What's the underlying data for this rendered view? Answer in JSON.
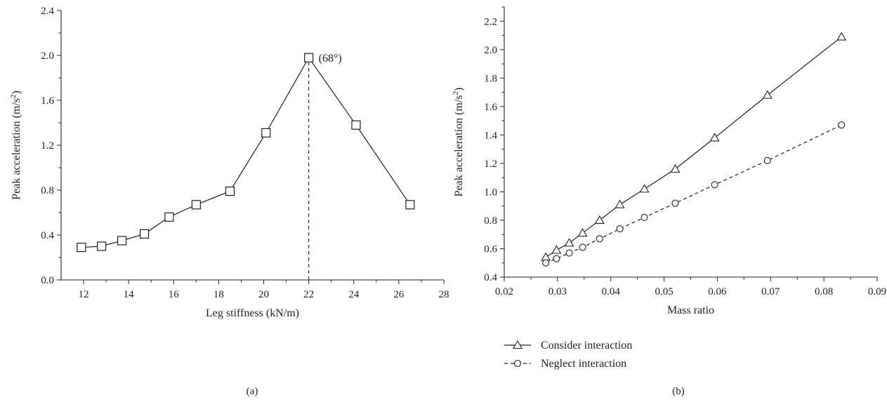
{
  "chart_data": [
    {
      "type": "line",
      "panel_label": "(a)",
      "xlabel": "Leg stiffness (kN/m)",
      "ylabel": "Peak acceleration (m/s",
      "ylabel_sup": "2",
      "ylabel_close": ")",
      "xlim": [
        11,
        28
      ],
      "ylim": [
        0,
        2.4
      ],
      "xticks": [
        "12",
        "14",
        "16",
        "18",
        "20",
        "22",
        "24",
        "26",
        "28"
      ],
      "yticks": [
        "0.0",
        "0.4",
        "0.8",
        "1.2",
        "1.6",
        "2.0",
        "2.4"
      ],
      "grid": false,
      "series": [
        {
          "marker": "square",
          "line": "solid",
          "x": [
            11.9,
            12.8,
            13.7,
            14.7,
            15.8,
            17.0,
            18.5,
            20.1,
            22.0,
            24.1,
            26.5
          ],
          "y": [
            0.29,
            0.3,
            0.35,
            0.41,
            0.56,
            0.67,
            0.79,
            1.31,
            1.98,
            1.38,
            0.67
          ]
        }
      ],
      "annotations": [
        {
          "text": "(68°)",
          "x": 22.0,
          "y": 1.98
        }
      ],
      "reference_lines": [
        {
          "orientation": "vertical",
          "x": 22.0,
          "y_from": 0,
          "y_to": 1.98,
          "style": "dashed"
        }
      ]
    },
    {
      "type": "line",
      "panel_label": "(b)",
      "xlabel": "Mass ratio",
      "ylabel": "Peak acceleration (m/s",
      "ylabel_sup": "2",
      "ylabel_close": ")",
      "xlim": [
        0.02,
        0.09
      ],
      "ylim": [
        0.4,
        2.3
      ],
      "xticks": [
        "0.02",
        "0.03",
        "0.04",
        "0.05",
        "0.06",
        "0.07",
        "0.08",
        "0.09"
      ],
      "yticks": [
        "0.4",
        "0.6",
        "0.8",
        "1.0",
        "1.2",
        "1.4",
        "1.6",
        "1.8",
        "2.0",
        "2.2"
      ],
      "grid": false,
      "legend_position": "below",
      "series": [
        {
          "name": "Consider interaction",
          "marker": "triangle",
          "line": "solid",
          "x": [
            0.0278,
            0.0298,
            0.0322,
            0.0347,
            0.0379,
            0.0417,
            0.0463,
            0.0521,
            0.0595,
            0.0694,
            0.0833
          ],
          "y": [
            0.54,
            0.59,
            0.64,
            0.71,
            0.8,
            0.91,
            1.02,
            1.16,
            1.38,
            1.68,
            2.09
          ]
        },
        {
          "name": "Neglect interaction",
          "marker": "circle",
          "line": "dashed",
          "x": [
            0.0278,
            0.0298,
            0.0322,
            0.0347,
            0.0379,
            0.0417,
            0.0463,
            0.0521,
            0.0595,
            0.0694,
            0.0833
          ],
          "y": [
            0.5,
            0.53,
            0.57,
            0.61,
            0.67,
            0.74,
            0.82,
            0.92,
            1.05,
            1.22,
            1.47
          ]
        }
      ]
    }
  ]
}
